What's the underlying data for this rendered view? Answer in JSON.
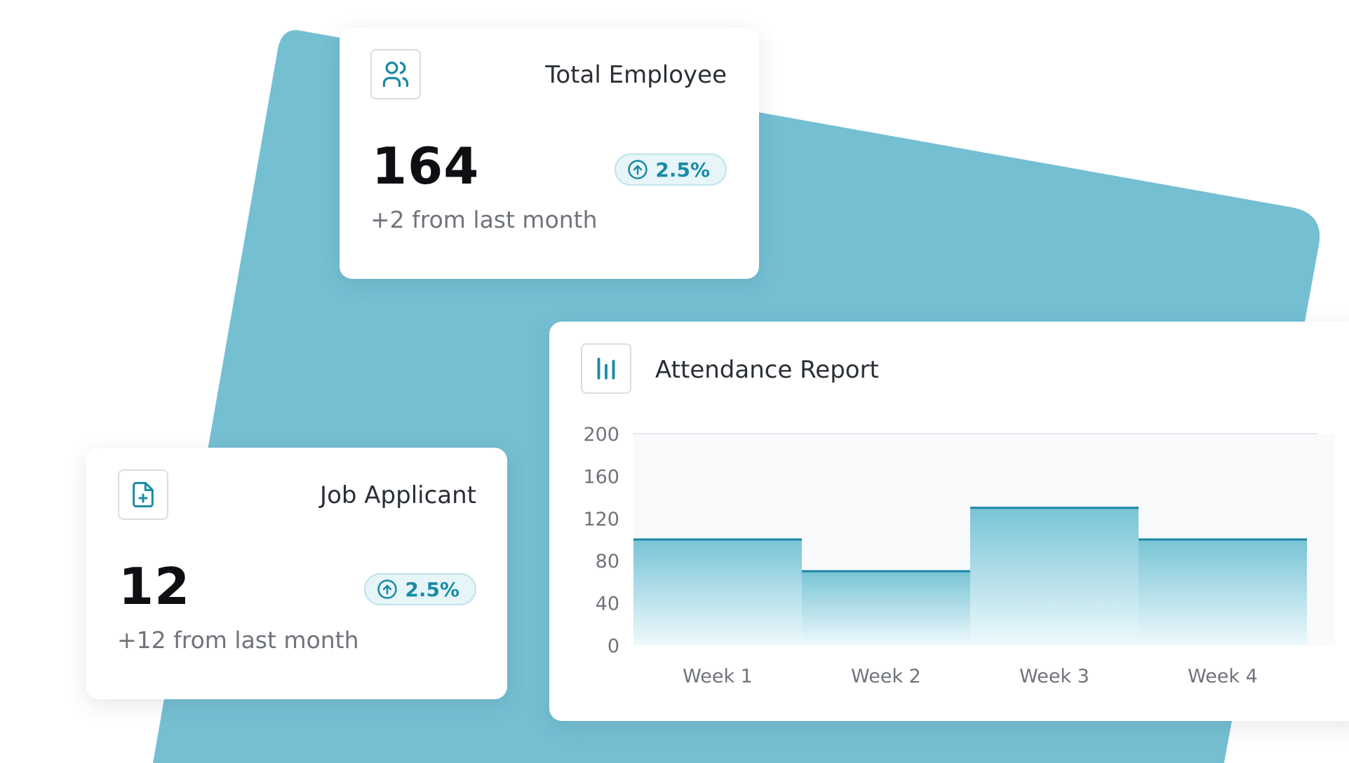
{
  "colors": {
    "background_shape": "#75bfd3",
    "accent": "#1a8aa6",
    "bar_top": "#1a86a4",
    "bar_fill_top": "#78c4d6",
    "bar_fill_bottom": "#eef9fc"
  },
  "total_employee": {
    "icon": "users-icon",
    "title": "Total Employee",
    "value": "164",
    "change": "2.5%",
    "change_icon": "arrow-up-circle-icon",
    "subtext": "+2 from last month"
  },
  "job_applicant": {
    "icon": "file-plus-icon",
    "title": "Job Applicant",
    "value": "12",
    "change": "2.5%",
    "change_icon": "arrow-up-circle-icon",
    "subtext": "+12 from last month"
  },
  "attendance": {
    "icon": "bar-chart-icon",
    "title": "Attendance Report"
  },
  "chart_data": {
    "type": "bar",
    "title": "Attendance Report",
    "categories": [
      "Week 1",
      "Week 2",
      "Week 3",
      "Week 4"
    ],
    "values": [
      100,
      70,
      130,
      100
    ],
    "ylim": [
      0,
      200
    ],
    "yticks": [
      0,
      40,
      80,
      120,
      160,
      200
    ],
    "grid": false,
    "xlabel": "",
    "ylabel": ""
  }
}
